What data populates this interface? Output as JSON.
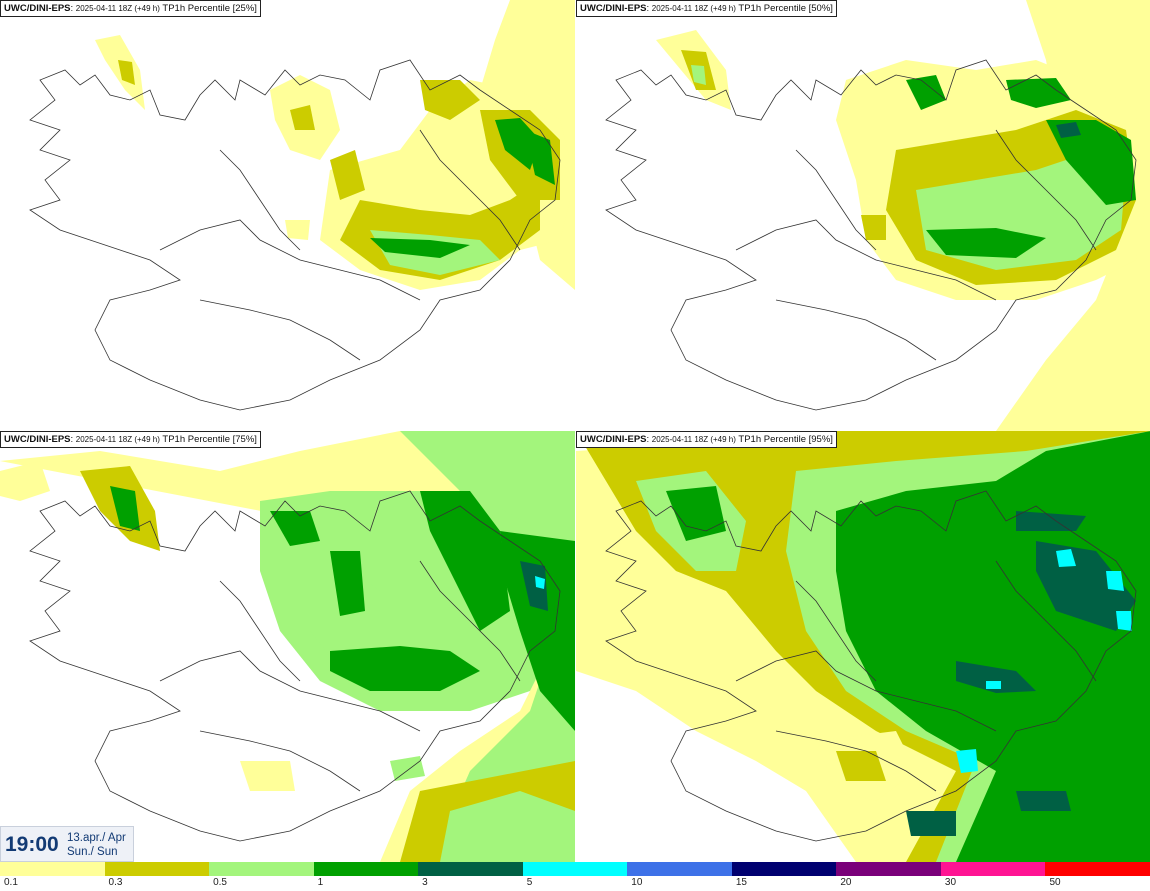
{
  "panels": [
    {
      "model": "UWC/DINI-EPS",
      "run": "2025-04-11 18Z (+49 h)",
      "label": "TP1h Percentile [25%]"
    },
    {
      "model": "UWC/DINI-EPS",
      "run": "2025-04-11 18Z (+49 h)",
      "label": "TP1h Percentile [50%]"
    },
    {
      "model": "UWC/DINI-EPS",
      "run": "2025-04-11 18Z (+49 h)",
      "label": "TP1h Percentile [75%]"
    },
    {
      "model": "UWC/DINI-EPS",
      "run": "2025-04-11 18Z (+49 h)",
      "label": "TP1h Percentile [95%]"
    }
  ],
  "time": {
    "clock": "19:00",
    "date_line": "13.apr./ Apr",
    "day_line": "Sun./ Sun"
  },
  "legend": {
    "labels": [
      "0.1",
      "0.3",
      "0.5",
      "1",
      "3",
      "5",
      "10",
      "15",
      "20",
      "30",
      "50"
    ],
    "colors": [
      "#ffff99",
      "#cccc00",
      "#a3f57c",
      "#00a000",
      "#006044",
      "#00ffff",
      "#3d71e8",
      "#000070",
      "#7a007a",
      "#ff1493",
      "#ff0000"
    ]
  },
  "map_colors": {
    "land_outline": "#333333",
    "class_0_1": "#ffff99",
    "class_0_3": "#cccc00",
    "class_0_5": "#a3f57c",
    "class_1": "#00a000",
    "class_3": "#006044",
    "class_5": "#00ffff"
  }
}
